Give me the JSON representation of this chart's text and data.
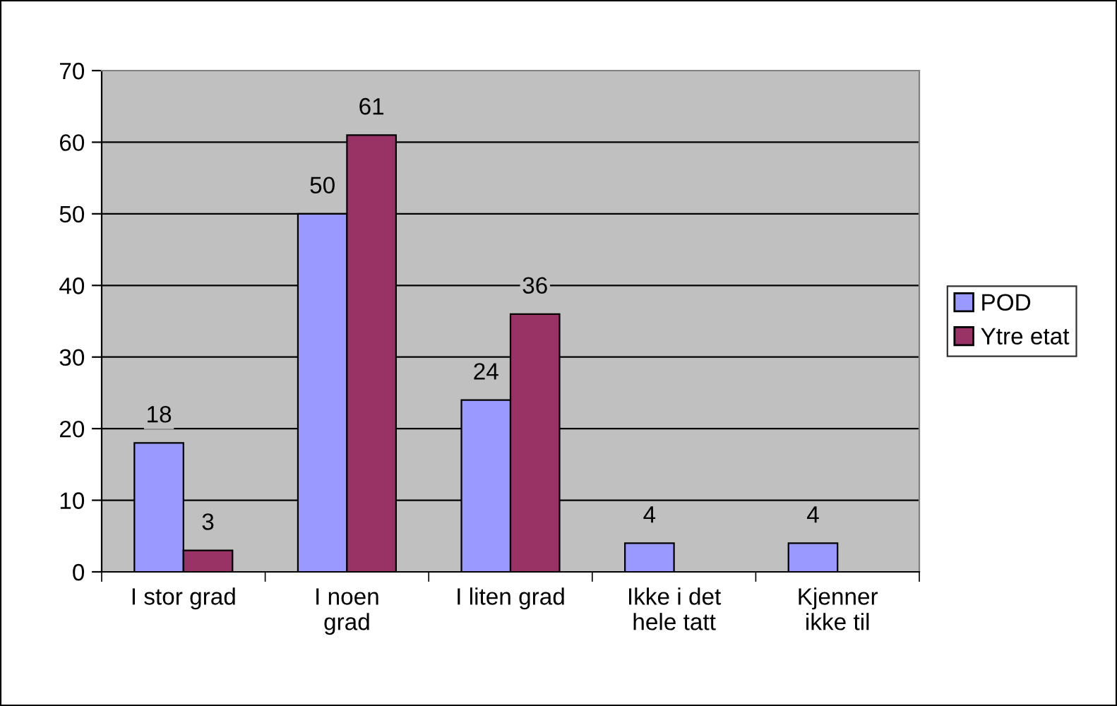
{
  "chart_data": {
    "type": "bar",
    "categories": [
      "I stor grad",
      "I noen\ngrad",
      "I liten grad",
      "Ikke i det\nhele tatt",
      "Kjenner\nikke til"
    ],
    "series": [
      {
        "name": "POD",
        "color": "#9999ff",
        "values": [
          18,
          50,
          24,
          4,
          4
        ]
      },
      {
        "name": "Ytre etat",
        "color": "#993366",
        "values": [
          3,
          61,
          36,
          null,
          null
        ]
      }
    ],
    "ylim": [
      0,
      70
    ],
    "yticks": [
      0,
      10,
      20,
      30,
      40,
      50,
      60,
      70
    ],
    "grid": "y",
    "legend": "right",
    "data_labels": true
  }
}
